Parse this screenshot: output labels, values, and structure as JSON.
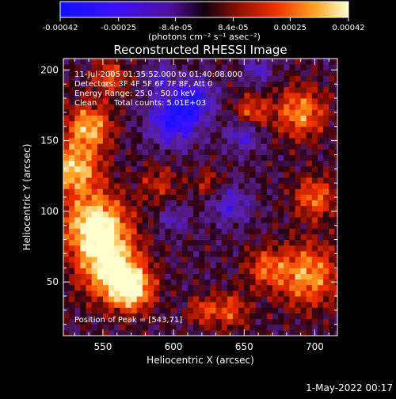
{
  "colorbar": {
    "ticks": [
      "-0.00042",
      "-0.00025",
      "-8.4e-05",
      "8.4e-05",
      "0.00025",
      "0.00042"
    ],
    "tick_values": [
      -0.00042,
      -0.00025,
      -8.4e-05,
      8.4e-05,
      0.00025,
      0.00042
    ],
    "range": [
      -0.00042,
      0.00042
    ],
    "unit_label": "(photons cm⁻² s⁻¹ asec⁻²)"
  },
  "chart_data": {
    "type": "heatmap",
    "title": "Reconstructed RHESSI Image",
    "xlabel": "Heliocentric X (arcsec)",
    "ylabel": "Heliocentric Y (arcsec)",
    "xlim": [
      522,
      716
    ],
    "ylim": [
      12,
      208
    ],
    "x_ticks": [
      550,
      600,
      650,
      700
    ],
    "y_ticks": [
      50,
      100,
      150,
      200
    ],
    "annotations": [
      "11-Jul-2005 01:35:52.000 to 01:40:08.000",
      "Detectors: 3F 4F 5F 6F 7F 8F, Att 0",
      "Energy Range: 25.0 - 50.0 keV",
      "Clean",
      "Total counts: 5.01E+03"
    ],
    "peak_label": "Position of Peak = [543,71]",
    "peak": [
      543,
      71
    ],
    "pixel_size": 4
  },
  "footer": {
    "timestamp": "1-May-2022 00:17"
  }
}
